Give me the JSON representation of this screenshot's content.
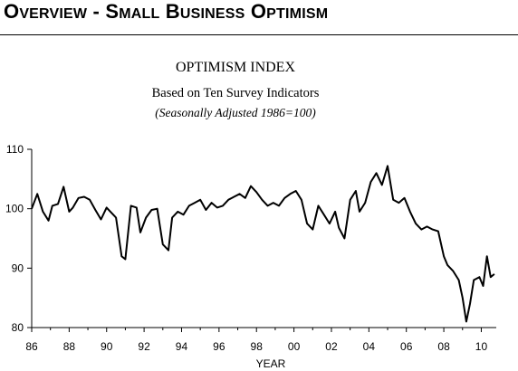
{
  "header": {
    "title_parts": [
      {
        "t": "O",
        "big": true
      },
      {
        "t": "VERVIEW",
        "big": false
      },
      {
        "t": " - ",
        "big": true
      },
      {
        "t": "S",
        "big": true
      },
      {
        "t": "MALL",
        "big": false
      },
      {
        "t": " B",
        "big": true
      },
      {
        "t": "USINESS",
        "big": false
      },
      {
        "t": " O",
        "big": true
      },
      {
        "t": "PTIMISM",
        "big": false
      }
    ]
  },
  "chart_data": {
    "type": "line",
    "title": "OPTIMISM INDEX",
    "subtitle": "Based on Ten Survey Indicators",
    "note": "(Seasonally Adjusted 1986=100)",
    "xlabel": "YEAR",
    "ylabel": "",
    "xlim": [
      1986,
      2010.8
    ],
    "ylim": [
      80,
      110
    ],
    "yticks": [
      80,
      90,
      100,
      110
    ],
    "xticks": [
      1986,
      1988,
      1990,
      1992,
      1994,
      1996,
      1998,
      2000,
      2002,
      2004,
      2006,
      2008,
      2010
    ],
    "xticklabels": [
      "86",
      "88",
      "90",
      "92",
      "94",
      "96",
      "98",
      "00",
      "02",
      "04",
      "06",
      "08",
      "10"
    ],
    "grid": false,
    "series": [
      {
        "color": "#000000",
        "x": [
          1986.0,
          1986.3,
          1986.6,
          1986.9,
          1987.1,
          1987.4,
          1987.7,
          1988.0,
          1988.2,
          1988.5,
          1988.8,
          1989.1,
          1989.4,
          1989.7,
          1990.0,
          1990.2,
          1990.5,
          1990.8,
          1991.0,
          1991.3,
          1991.6,
          1991.8,
          1992.1,
          1992.4,
          1992.7,
          1993.0,
          1993.3,
          1993.5,
          1993.8,
          1994.1,
          1994.4,
          1994.7,
          1995.0,
          1995.3,
          1995.6,
          1995.9,
          1996.2,
          1996.5,
          1996.8,
          1997.1,
          1997.4,
          1997.7,
          1998.0,
          1998.3,
          1998.6,
          1998.9,
          1999.2,
          1999.5,
          1999.8,
          2000.1,
          2000.4,
          2000.7,
          2001.0,
          2001.3,
          2001.6,
          2001.9,
          2002.2,
          2002.4,
          2002.7,
          2003.0,
          2003.3,
          2003.5,
          2003.8,
          2004.1,
          2004.4,
          2004.7,
          2005.0,
          2005.3,
          2005.6,
          2005.9,
          2006.2,
          2006.5,
          2006.8,
          2007.1,
          2007.4,
          2007.7,
          2008.0,
          2008.2,
          2008.5,
          2008.8,
          2009.0,
          2009.2,
          2009.4,
          2009.6,
          2009.9,
          2010.1,
          2010.3,
          2010.5,
          2010.7
        ],
        "values": [
          100.0,
          102.5,
          99.5,
          98.0,
          100.5,
          100.8,
          103.7,
          99.5,
          100.2,
          101.8,
          102.0,
          101.5,
          99.8,
          98.2,
          100.2,
          99.5,
          98.5,
          92.0,
          91.5,
          100.5,
          100.2,
          96.0,
          98.5,
          99.8,
          100.0,
          94.0,
          93.0,
          98.5,
          99.5,
          99.0,
          100.5,
          101.0,
          101.5,
          99.8,
          101.0,
          100.2,
          100.5,
          101.5,
          102.0,
          102.5,
          101.8,
          103.8,
          102.8,
          101.5,
          100.5,
          101.0,
          100.5,
          101.8,
          102.5,
          103.0,
          101.5,
          97.5,
          96.5,
          100.5,
          99.0,
          97.5,
          99.5,
          96.8,
          95.0,
          101.5,
          103.0,
          99.5,
          101.0,
          104.5,
          106.0,
          104.0,
          107.2,
          101.5,
          101.0,
          101.8,
          99.5,
          97.5,
          96.5,
          97.0,
          96.5,
          96.2,
          92.0,
          90.5,
          89.5,
          88.0,
          85.0,
          81.0,
          84.0,
          88.0,
          88.5,
          87.0,
          92.0,
          88.5,
          89.0
        ]
      }
    ]
  }
}
